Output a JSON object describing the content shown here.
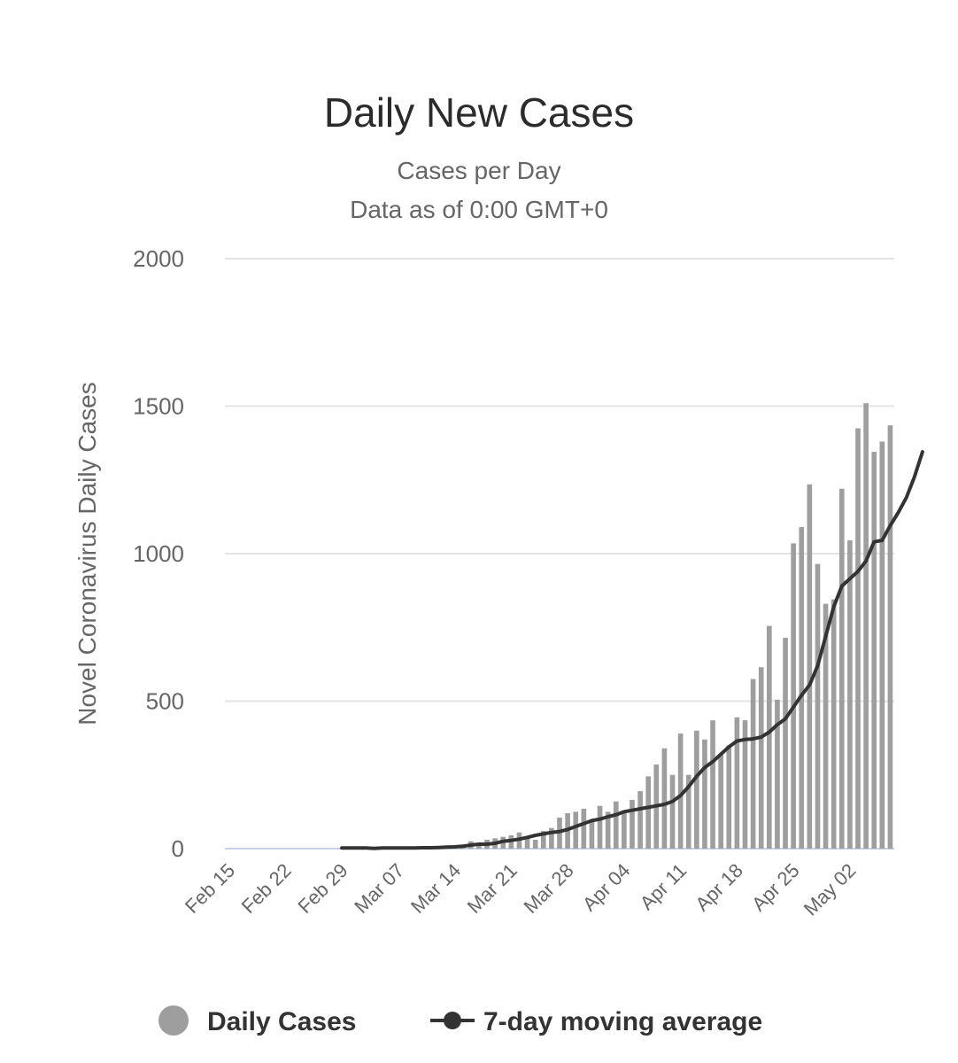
{
  "chart_data": {
    "type": "bar",
    "title": "Daily New Cases",
    "subtitle_lines": [
      "Cases per Day",
      "Data as of 0:00 GMT+0"
    ],
    "ylabel": "Novel Coronavirus Daily Cases",
    "xlabel": "",
    "ylim": [
      0,
      2000
    ],
    "yticks": [
      0,
      500,
      1000,
      1500,
      2000
    ],
    "grid": true,
    "legend_placement": "bottom-center",
    "x_start": "Feb 15",
    "x_end": "May 05",
    "xticks": [
      "Feb 15",
      "Feb 22",
      "Feb 29",
      "Mar 07",
      "Mar 14",
      "Mar 21",
      "Mar 28",
      "Apr 04",
      "Apr 11",
      "Apr 18",
      "Apr 25",
      "May 02"
    ],
    "series": [
      {
        "name": "Daily Cases",
        "kind": "bar",
        "color": "#9e9e9e",
        "values": [
          0,
          0,
          0,
          0,
          0,
          0,
          0,
          0,
          0,
          0,
          0,
          0,
          0,
          0,
          2,
          0,
          1,
          1,
          2,
          1,
          2,
          1,
          3,
          4,
          2,
          5,
          8,
          10,
          5,
          12,
          25,
          20,
          30,
          35,
          40,
          45,
          55,
          40,
          30,
          60,
          70,
          105,
          120,
          125,
          135,
          95,
          145,
          125,
          160,
          130,
          165,
          195,
          245,
          285,
          340,
          250,
          390,
          250,
          400,
          370,
          435,
          320,
          350,
          445,
          435,
          575,
          615,
          755,
          505,
          715,
          1035,
          1090,
          1235,
          965,
          830,
          845,
          1220,
          1045,
          1425,
          1510,
          1345,
          1380,
          1435
        ]
      },
      {
        "name": "7-day moving average",
        "kind": "line",
        "color": "#333333",
        "start_index": 14,
        "values": [
          2,
          2,
          2,
          2,
          1,
          2,
          2,
          2,
          2,
          2,
          3,
          3,
          4,
          5,
          6,
          8,
          12,
          15,
          15,
          18,
          25,
          28,
          32,
          38,
          45,
          50,
          55,
          58,
          65,
          75,
          85,
          95,
          100,
          108,
          115,
          125,
          130,
          135,
          140,
          145,
          150,
          160,
          180,
          210,
          245,
          275,
          295,
          320,
          345,
          365,
          370,
          372,
          378,
          395,
          420,
          440,
          480,
          520,
          555,
          620,
          720,
          820,
          890,
          915,
          940,
          975,
          1040,
          1045,
          1095,
          1140,
          1190,
          1260,
          1345
        ]
      }
    ]
  }
}
